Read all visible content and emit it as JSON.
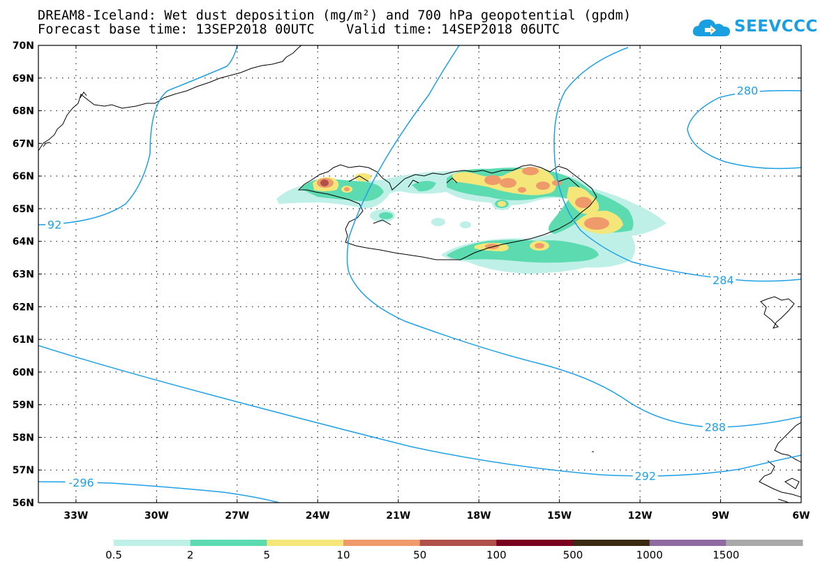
{
  "header": {
    "title_line1": "DREAM8-Iceland: Wet dust deposition (mg/m²) and 700 hPa geopotential (gpdm)",
    "title_line2": "Forecast base time: 13SEP2018 00UTC    Valid time: 14SEP2018 06UTC",
    "logo_text": "SEEVCCC"
  },
  "map": {
    "lat_labels": [
      "70N",
      "69N",
      "68N",
      "67N",
      "66N",
      "65N",
      "64N",
      "63N",
      "62N",
      "61N",
      "60N",
      "59N",
      "58N",
      "57N",
      "56N"
    ],
    "lon_labels": [
      "33W",
      "30W",
      "27W",
      "24W",
      "21W",
      "18W",
      "15W",
      "12W",
      "9W",
      "6W"
    ],
    "contour_labels": [
      {
        "text": "280",
        "lon": -8.0,
        "lat": 68.6
      },
      {
        "text": "284",
        "lon": -8.9,
        "lat": 62.8
      },
      {
        "text": "288",
        "lon": -9.2,
        "lat": 58.3
      },
      {
        "text": "292",
        "lon": -11.8,
        "lat": 56.8
      },
      {
        "text": "-296",
        "lon": -32.8,
        "lat": 56.6
      },
      {
        "text": "92",
        "lon": -33.8,
        "lat": 64.5
      }
    ],
    "contour_color": "#1ea0e6"
  },
  "colorbar": {
    "labels": [
      "0.5",
      "2",
      "5",
      "10",
      "50",
      "100",
      "500",
      "1000",
      "1500"
    ],
    "colors": [
      "#bff0e8",
      "#5ddbb0",
      "#f5e67a",
      "#ee9a6a",
      "#b0504a",
      "#7a0022",
      "#3a2a12",
      "#8e6aa0",
      "#a8a8a8"
    ]
  }
}
